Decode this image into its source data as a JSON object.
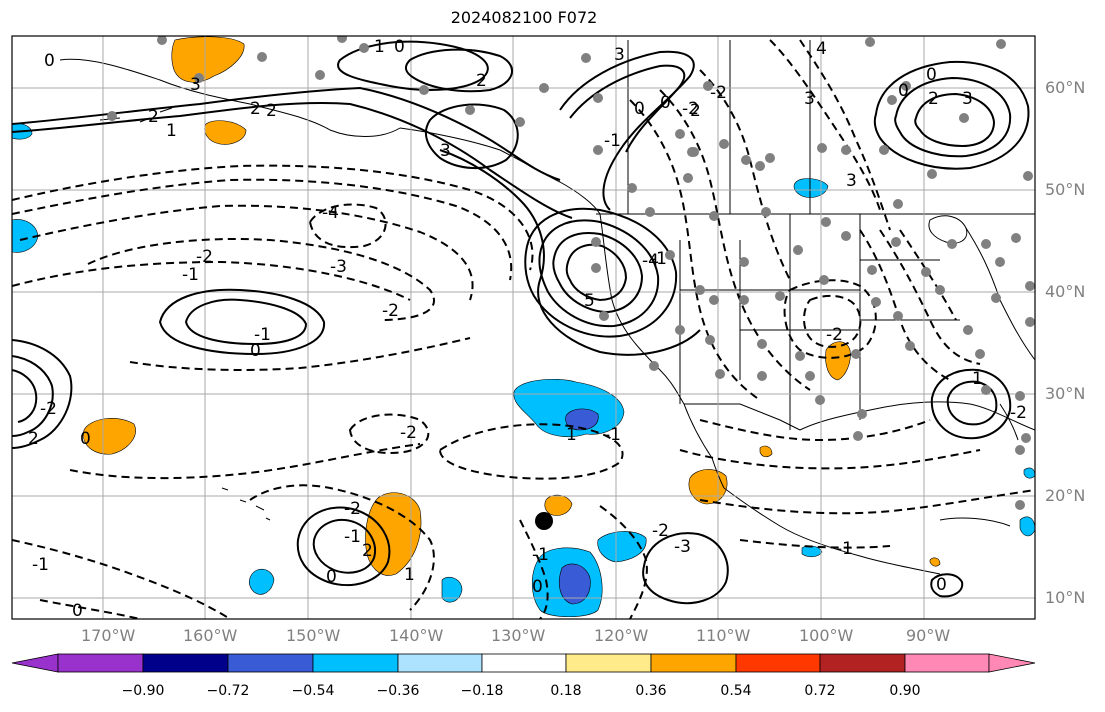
{
  "title": "2024082100 F072",
  "latitude_labels": [
    "60°N",
    "50°N",
    "40°N",
    "30°N",
    "20°N",
    "10°N"
  ],
  "longitude_labels": [
    "170°W",
    "160°W",
    "150°W",
    "140°W",
    "130°W",
    "120°W",
    "110°W",
    "100°W",
    "90°W"
  ],
  "colorbar": {
    "ticks": [
      "−0.90",
      "−0.72",
      "−0.54",
      "−0.36",
      "−0.18",
      "0.18",
      "0.36",
      "0.54",
      "0.72",
      "0.90"
    ],
    "colors": [
      "#9932cc",
      "#00008b",
      "#3a5bd6",
      "#00bfff",
      "#aee3ff",
      "#ffffff",
      "#ffeb8a",
      "#ffa500",
      "#ff3800",
      "#b22222",
      "#ff88b4"
    ]
  },
  "contour_labels": [
    "3",
    "0",
    "1",
    "2",
    "2",
    "3",
    "2",
    "3",
    "1",
    "2",
    "0",
    "0",
    "2",
    "3",
    "0",
    "4",
    "2",
    "3",
    "3",
    "0",
    "-4",
    "-2",
    "-1",
    "-3",
    "-2",
    "-1",
    "0",
    "5",
    "-4",
    "-2",
    "0",
    "-2",
    "2",
    "-1",
    "0",
    "-2",
    "-1",
    "2",
    "1",
    "0",
    "-1",
    "0",
    "1",
    "-1",
    "-2",
    "-3",
    "-2",
    "-1",
    "1",
    "-2",
    "-1",
    "0",
    "-1",
    "-2",
    "-2",
    "0"
  ]
}
